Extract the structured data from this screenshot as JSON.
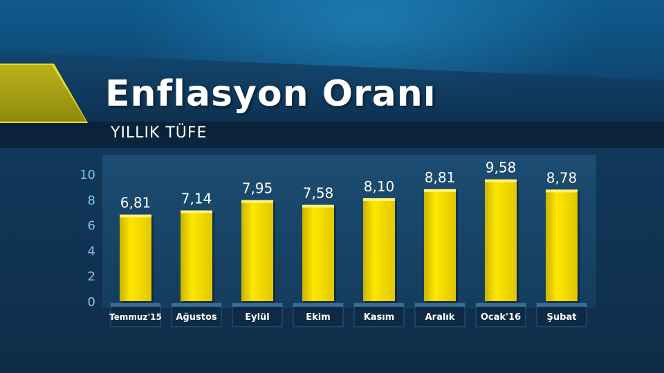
{
  "title": "Enflasyon Oranı",
  "subtitle": "YILLIK TÜFE",
  "colors": {
    "bar": "#f2de00",
    "accent": "#e8e21f"
  },
  "chart_data": {
    "type": "bar",
    "categories": [
      "Temmuz'15",
      "Ağustos",
      "Eylül",
      "Ekim",
      "Kasım",
      "Aralık",
      "Ocak'16",
      "Şubat"
    ],
    "values": [
      6.81,
      7.14,
      7.95,
      7.58,
      8.1,
      8.81,
      9.58,
      8.78
    ],
    "value_labels": [
      "6,81",
      "7,14",
      "7,95",
      "7,58",
      "8,10",
      "8,81",
      "9,58",
      "8,78"
    ],
    "yticks": [
      0,
      2,
      4,
      6,
      8,
      10
    ],
    "ylim": [
      0,
      10
    ],
    "grid": false,
    "legend": "none"
  }
}
